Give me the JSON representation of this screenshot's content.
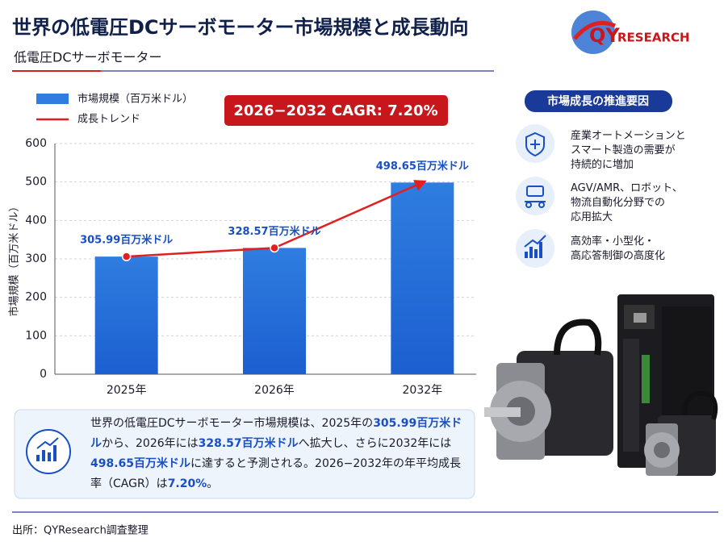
{
  "header": {
    "title": "世界の低電圧DCサーボモーター市場規模と成長動向",
    "subtitle": "低電圧DCサーボモーター"
  },
  "logo": {
    "primary": "QY",
    "secondary": "RESEARCH"
  },
  "chart_data": {
    "type": "bar",
    "categories": [
      "2025年",
      "2026年",
      "2032年"
    ],
    "series": [
      {
        "name": "市場規模（百万米ドル）",
        "color": "#2f7de0",
        "values": [
          305.99,
          328.57,
          498.65
        ],
        "value_labels": [
          "305.99百万米ドル",
          "328.57百万米ドル",
          "498.65百万米ドル"
        ]
      },
      {
        "name": "成長トレンド",
        "type": "line",
        "color": "#e02020",
        "values": [
          305.99,
          328.57,
          498.65
        ]
      }
    ],
    "ylabel": "市場規模（百万米ドル）",
    "annotation": "2026−2032 CAGR: 7.20%",
    "ylim": [
      0,
      600
    ],
    "yticks": [
      0,
      100,
      200,
      300,
      400,
      500,
      600
    ],
    "grid": true
  },
  "drivers": {
    "title": "市場成長の推進要因",
    "items": [
      {
        "lines": [
          "産業オートメーションと",
          "スマート製造の需要が",
          "持続的に増加"
        ]
      },
      {
        "lines": [
          "AGV/AMR、ロボット、",
          "物流自動化分野での",
          "応用拡大"
        ]
      },
      {
        "lines": [
          "高効率・小型化・",
          "高応答制御の高度化"
        ]
      }
    ]
  },
  "summary": [
    {
      "text": "世界の低電圧DCサーボモーター市場規模は、2025年の",
      "em": false
    },
    {
      "text": "305.99百万米ドル",
      "em": true
    },
    {
      "text": "から、2026年には",
      "em": false
    },
    {
      "text": "328.57百万米ドル",
      "em": true
    },
    {
      "text": "へ拡大し、さらに2032年には",
      "em": false
    },
    {
      "text": "498.65百万米ドル",
      "em": true
    },
    {
      "text": "に達すると予測される。2026−2032年の年平均成長率（CAGR）は",
      "em": false
    },
    {
      "text": "7.20%",
      "em": true
    },
    {
      "text": "。",
      "em": false
    }
  ],
  "footer": "出所：QYResearch調査整理"
}
